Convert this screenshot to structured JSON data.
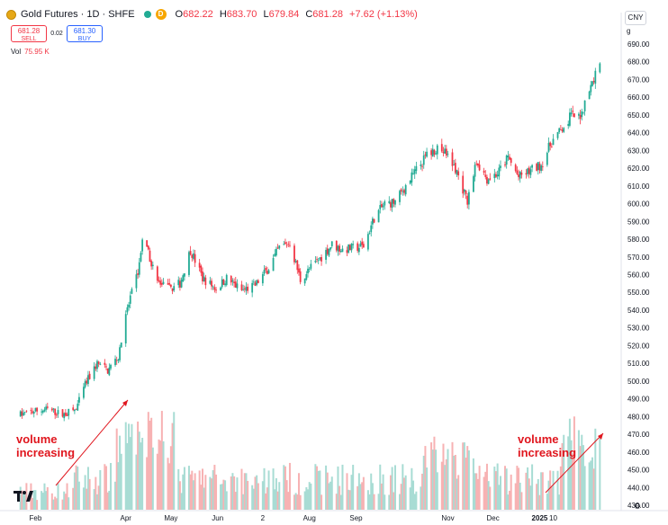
{
  "header": {
    "title": "Gold Futures · 1D · SHFE",
    "d_badge": "D",
    "o_label": "O",
    "o_value": "682.22",
    "h_label": "H",
    "h_value": "683.70",
    "l_label": "L",
    "l_value": "679.84",
    "c_label": "C",
    "c_value": "681.28",
    "change": "+7.62 (+1.13%)"
  },
  "trade": {
    "sell_price": "681.28",
    "sell_label": "SELL",
    "spread": "0.02",
    "buy_price": "681.30",
    "buy_label": "BUY"
  },
  "volume_legend": {
    "label": "Vol",
    "value": "75.95 K"
  },
  "currency": "CNY",
  "scale_mark": "g",
  "annotations": {
    "left": [
      "volume",
      "increasing"
    ],
    "right": [
      "volume",
      "increasing"
    ]
  },
  "colors": {
    "up": "#22ab94",
    "down": "#f23645",
    "vol_up": "#a8dcd4",
    "vol_down": "#f7b2b3",
    "annotation": "#e0161e"
  },
  "chart_data": {
    "type": "candlestick",
    "y_axis": {
      "min": 430,
      "max": 690,
      "ticks": [
        690,
        680,
        670,
        660,
        650,
        640,
        630,
        620,
        610,
        600,
        590,
        580,
        570,
        560,
        550,
        540,
        530,
        520,
        510,
        500,
        490,
        480,
        470,
        460,
        450,
        440,
        430
      ]
    },
    "x_tick_labels": [
      "Feb",
      "Apr",
      "May",
      "Jun",
      "2",
      "Aug",
      "Sep",
      "Nov",
      "Dec",
      "2025",
      "10"
    ],
    "price_path": [
      [
        "2024-01-22",
        481
      ],
      [
        "2024-01-31",
        483
      ],
      [
        "2024-02-09",
        484
      ],
      [
        "2024-02-19",
        481
      ],
      [
        "2024-02-28",
        484
      ],
      [
        "2024-03-05",
        498
      ],
      [
        "2024-03-13",
        510
      ],
      [
        "2024-03-20",
        506
      ],
      [
        "2024-03-27",
        514
      ],
      [
        "2024-04-02",
        540
      ],
      [
        "2024-04-09",
        562
      ],
      [
        "2024-04-12",
        578
      ],
      [
        "2024-04-16",
        572
      ],
      [
        "2024-04-22",
        556
      ],
      [
        "2024-04-29",
        552
      ],
      [
        "2024-05-07",
        555
      ],
      [
        "2024-05-14",
        574
      ],
      [
        "2024-05-22",
        558
      ],
      [
        "2024-05-31",
        552
      ],
      [
        "2024-06-07",
        558
      ],
      [
        "2024-06-17",
        551
      ],
      [
        "2024-06-26",
        554
      ],
      [
        "2024-07-05",
        564
      ],
      [
        "2024-07-12",
        575
      ],
      [
        "2024-07-19",
        578
      ],
      [
        "2024-07-26",
        557
      ],
      [
        "2024-08-02",
        564
      ],
      [
        "2024-08-09",
        570
      ],
      [
        "2024-08-16",
        577
      ],
      [
        "2024-08-23",
        574
      ],
      [
        "2024-08-30",
        575
      ],
      [
        "2024-09-06",
        576
      ],
      [
        "2024-09-13",
        592
      ],
      [
        "2024-09-20",
        600
      ],
      [
        "2024-09-27",
        601
      ],
      [
        "2024-10-11",
        619
      ],
      [
        "2024-10-18",
        627
      ],
      [
        "2024-10-25",
        632
      ],
      [
        "2024-10-31",
        628
      ],
      [
        "2024-11-07",
        618
      ],
      [
        "2024-11-14",
        601
      ],
      [
        "2024-11-20",
        624
      ],
      [
        "2024-11-27",
        614
      ],
      [
        "2024-12-04",
        617
      ],
      [
        "2024-12-11",
        626
      ],
      [
        "2024-12-18",
        615
      ],
      [
        "2024-12-25",
        618
      ],
      [
        "2025-01-02",
        622
      ],
      [
        "2025-01-09",
        635
      ],
      [
        "2025-01-16",
        642
      ],
      [
        "2025-01-22",
        650
      ],
      [
        "2025-01-27",
        648
      ],
      [
        "2025-02-05",
        668
      ],
      [
        "2025-02-10",
        681
      ]
    ]
  }
}
